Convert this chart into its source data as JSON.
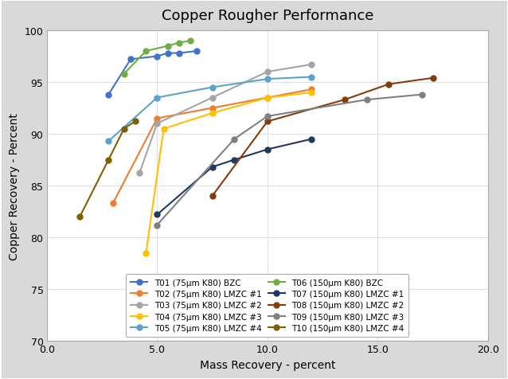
{
  "title": "Copper Rougher Performance",
  "xlabel": "Mass Recovery - percent",
  "ylabel": "Copper Recovery - Percent",
  "xlim": [
    0.0,
    20.0
  ],
  "ylim": [
    70.0,
    100.0
  ],
  "xticks": [
    0.0,
    5.0,
    10.0,
    15.0,
    20.0
  ],
  "yticks": [
    70,
    75,
    80,
    85,
    90,
    95,
    100
  ],
  "series": [
    {
      "label": "T01 (75μm K80) BZC",
      "color": "#4472C4",
      "marker": "o",
      "x": [
        2.8,
        3.8,
        5.0,
        5.5,
        6.0,
        6.8
      ],
      "y": [
        93.8,
        97.2,
        97.5,
        97.8,
        97.8,
        98.0
      ]
    },
    {
      "label": "T02 (75μm K80) LMZC #1",
      "color": "#ED7D31",
      "marker": "o",
      "x": [
        3.0,
        5.0,
        7.5,
        10.0,
        12.0
      ],
      "y": [
        83.3,
        91.5,
        92.5,
        93.5,
        94.3
      ]
    },
    {
      "label": "T03 (75μm K80) LMZC #2",
      "color": "#A5A5A5",
      "marker": "o",
      "x": [
        4.2,
        5.0,
        7.5,
        10.0,
        12.0
      ],
      "y": [
        86.2,
        91.0,
        93.5,
        96.0,
        96.7
      ]
    },
    {
      "label": "T04 (75μm K80) LMZC #3",
      "color": "#FFC000",
      "marker": "o",
      "x": [
        4.5,
        5.3,
        7.5,
        10.0,
        12.0
      ],
      "y": [
        78.5,
        90.5,
        92.0,
        93.5,
        94.0
      ]
    },
    {
      "label": "T05 (75μm K80) LMZC #4",
      "color": "#5BA3C9",
      "marker": "o",
      "x": [
        2.8,
        5.0,
        7.5,
        10.0,
        12.0
      ],
      "y": [
        89.3,
        93.5,
        94.5,
        95.3,
        95.5
      ]
    },
    {
      "label": "T06 (150μm K80) BZC",
      "color": "#70AD47",
      "marker": "o",
      "x": [
        3.5,
        4.5,
        5.5,
        6.0,
        6.5
      ],
      "y": [
        95.8,
        98.0,
        98.5,
        98.8,
        99.0
      ]
    },
    {
      "label": "T07 (150μm K80) LMZC #1",
      "color": "#203864",
      "marker": "o",
      "x": [
        5.0,
        7.5,
        8.5,
        10.0,
        12.0
      ],
      "y": [
        82.2,
        86.8,
        87.5,
        88.5,
        89.5
      ]
    },
    {
      "label": "T08 (150μm K80) LMZC #2",
      "color": "#843C0C",
      "marker": "o",
      "x": [
        7.5,
        10.0,
        13.5,
        15.5,
        17.5
      ],
      "y": [
        84.0,
        91.2,
        93.3,
        94.8,
        95.4
      ]
    },
    {
      "label": "T09 (150μm K80) LMZC #3",
      "color": "#808080",
      "marker": "o",
      "x": [
        5.0,
        8.5,
        10.0,
        14.5,
        17.0
      ],
      "y": [
        81.2,
        89.5,
        91.7,
        93.3,
        93.8
      ]
    },
    {
      "label": "T10 (150μm K80) LMZC #4",
      "color": "#7F6000",
      "marker": "o",
      "x": [
        1.5,
        2.8,
        3.5,
        4.0
      ],
      "y": [
        82.0,
        87.5,
        90.5,
        91.2
      ]
    }
  ],
  "legend_order": [
    0,
    1,
    2,
    3,
    4,
    5,
    6,
    7,
    8,
    9
  ],
  "legend_ncol": 2,
  "figsize": [
    6.38,
    4.77
  ],
  "dpi": 100,
  "bg_color": "#DCDCDC",
  "plot_bg_color": "#FFFFFF",
  "grid_color": "#E8E8E8",
  "border_color": "#AAAAAA",
  "outer_border_color": "#AAAAAA"
}
